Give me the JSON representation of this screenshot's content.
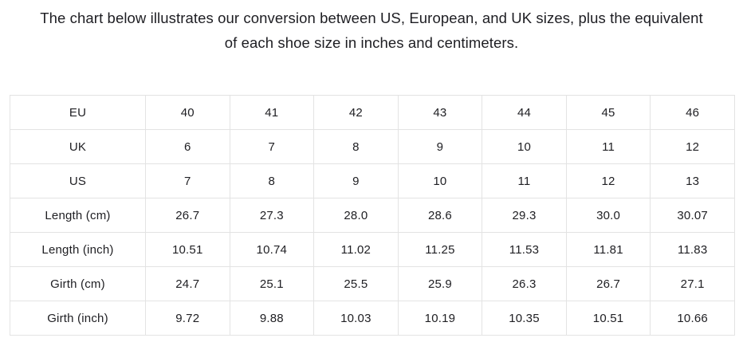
{
  "title": {
    "line1": "The chart below illustrates our conversion between US, European, and UK sizes, plus the equivalent",
    "line2": "of each shoe size in inches and centimeters."
  },
  "chart_data": {
    "type": "table",
    "description": "Shoe size conversion chart between EU, UK, US sizes with length and girth in cm and inches",
    "rows": [
      {
        "label": "EU",
        "values": [
          "40",
          "41",
          "42",
          "43",
          "44",
          "45",
          "46"
        ]
      },
      {
        "label": "UK",
        "values": [
          "6",
          "7",
          "8",
          "9",
          "10",
          "11",
          "12"
        ]
      },
      {
        "label": "US",
        "values": [
          "7",
          "8",
          "9",
          "10",
          "11",
          "12",
          "13"
        ]
      },
      {
        "label": "Length (cm)",
        "values": [
          "26.7",
          "27.3",
          "28.0",
          "28.6",
          "29.3",
          "30.0",
          "30.07"
        ]
      },
      {
        "label": "Length (inch)",
        "values": [
          "10.51",
          "10.74",
          "11.02",
          "11.25",
          "11.53",
          "11.81",
          "11.83"
        ]
      },
      {
        "label": "Girth (cm)",
        "values": [
          "24.7",
          "25.1",
          "25.5",
          "25.9",
          "26.3",
          "26.7",
          "27.1"
        ]
      },
      {
        "label": "Girth (inch)",
        "values": [
          "9.72",
          "9.88",
          "10.03",
          "10.19",
          "10.35",
          "10.51",
          "10.66"
        ]
      }
    ]
  },
  "colors": {
    "background": "#ffffff",
    "border": "#e3e3e3",
    "title_text": "#1d1d22",
    "cell_text": "#202024"
  }
}
